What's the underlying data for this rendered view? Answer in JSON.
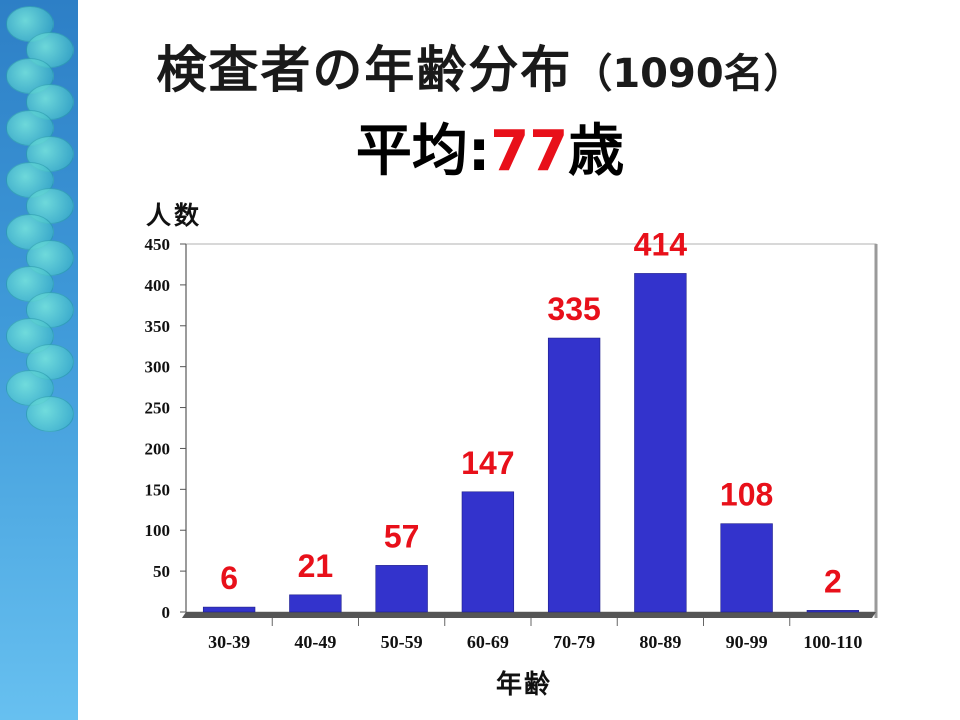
{
  "title": {
    "main": "検査者の年齢分布",
    "count": "（1090名）",
    "avg_label": "平均:",
    "avg_value": "77",
    "avg_unit": "歳"
  },
  "chart_data": {
    "type": "bar",
    "categories": [
      "30-39",
      "40-49",
      "50-59",
      "60-69",
      "70-79",
      "80-89",
      "90-99",
      "100-110"
    ],
    "values": [
      6,
      21,
      57,
      147,
      335,
      414,
      108,
      2
    ],
    "data_labels": [
      "6",
      "21",
      "57",
      "147",
      "335",
      "414",
      "108",
      "2"
    ],
    "ylabel": "人数",
    "xlabel": "年齢",
    "ylim": [
      0,
      450
    ],
    "yticks": [
      0,
      50,
      100,
      150,
      200,
      250,
      300,
      350,
      400,
      450
    ],
    "grid": false,
    "legend": "none",
    "bar_color": "#3333cc",
    "label_color": "#e8101a"
  }
}
